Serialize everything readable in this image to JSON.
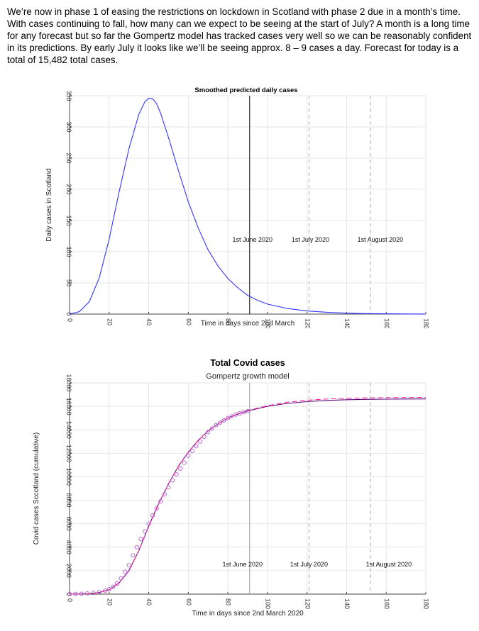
{
  "intro_text": "We’re now in phase 1 of easing the restrictions on lockdown in Scotland with phase 2 due in a month’s time. With cases continuing to fall, how many can we expect to be seeing at the start of July? A month is a long time for any forecast but so far the Gompertz model has tracked cases very well so we can be reasonably confident in its predictions. By early July it looks like we’ll be seeing approx. 8 – 9 cases a day.  Forecast for today is a total of 15,482 total cases.",
  "chart_data": [
    {
      "type": "line",
      "title": "Smoothed predicted daily cases",
      "subtitle": "",
      "xlabel": "Time in days since 2nd March",
      "ylabel": "Daily cases in Scotland",
      "xlim": [
        0,
        180
      ],
      "ylim": [
        0,
        350
      ],
      "xticks": [
        0,
        20,
        40,
        60,
        80,
        100,
        120,
        140,
        160,
        180
      ],
      "yticks": [
        0,
        50,
        100,
        150,
        200,
        250,
        300,
        350
      ],
      "grid": true,
      "series": [
        {
          "color": "#3333ff",
          "x": [
            0,
            5,
            10,
            15,
            20,
            25,
            30,
            35,
            38,
            40,
            42,
            44,
            46,
            50,
            55,
            60,
            65,
            70,
            75,
            80,
            85,
            90,
            95,
            100,
            110,
            120,
            130,
            140,
            150,
            160,
            170,
            180
          ],
          "y": [
            0,
            4,
            20,
            58,
            120,
            195,
            265,
            320,
            340,
            346,
            345,
            337,
            322,
            283,
            230,
            180,
            138,
            103,
            77,
            57,
            42,
            30,
            22,
            16,
            9,
            5,
            3,
            1.5,
            0.8,
            0.4,
            0.2,
            0.1
          ]
        }
      ],
      "markers": [
        {
          "x": 91,
          "label": "1st June 2020",
          "style": "solid"
        },
        {
          "x": 121,
          "label": "1st July 2020",
          "style": "dashed"
        },
        {
          "x": 152,
          "label": "1st August 2020",
          "style": "dashed"
        }
      ]
    },
    {
      "type": "line",
      "title": "Total Covid cases",
      "subtitle": "Gompertz growth model",
      "xlabel": "Time in days since 2nd March 2020",
      "ylabel": "Covid cases Sccotland (cumulative)",
      "xlim": [
        0,
        180
      ],
      "ylim": [
        0,
        18000
      ],
      "xticks": [
        0,
        20,
        40,
        60,
        80,
        100,
        120,
        140,
        160,
        180
      ],
      "yticks": [
        0,
        2000,
        4000,
        6000,
        8000,
        10000,
        12000,
        14000,
        16000,
        18000
      ],
      "grid": true,
      "series": [
        {
          "name": "",
          "color": "#5a0a7a",
          "style": "solid",
          "x": [
            0,
            10,
            15,
            20,
            25,
            30,
            35,
            40,
            45,
            50,
            55,
            60,
            65,
            70,
            75,
            80,
            85,
            90,
            95,
            100,
            110,
            120,
            130,
            140,
            150,
            160,
            170,
            180
          ],
          "y": [
            0,
            30,
            140,
            380,
            950,
            2000,
            3700,
            5800,
            7700,
            9400,
            10900,
            12100,
            13100,
            13900,
            14500,
            15000,
            15350,
            15600,
            15800,
            16000,
            16250,
            16400,
            16500,
            16560,
            16590,
            16610,
            16620,
            16630
          ]
        },
        {
          "name": "",
          "color": "#ff2299",
          "style": "dashed",
          "x": [
            0,
            10,
            15,
            20,
            25,
            30,
            35,
            40,
            45,
            50,
            55,
            60,
            65,
            70,
            75,
            80,
            85,
            90,
            95,
            100,
            110,
            120,
            130,
            140,
            150,
            160,
            170,
            180
          ],
          "y": [
            0,
            30,
            140,
            380,
            950,
            2000,
            3700,
            5800,
            7700,
            9400,
            10900,
            12100,
            13100,
            13900,
            14500,
            15000,
            15350,
            15650,
            15850,
            16050,
            16350,
            16520,
            16620,
            16680,
            16720,
            16740,
            16750,
            16760
          ]
        },
        {
          "name": "",
          "color": "#b060d0",
          "style": "markers",
          "x": [
            0,
            3,
            6,
            9,
            12,
            15,
            18,
            20,
            22,
            24,
            26,
            28,
            30,
            32,
            34,
            36,
            38,
            40,
            42,
            44,
            46,
            48,
            50,
            52,
            54,
            56,
            58,
            60,
            62,
            64,
            66,
            68,
            70,
            72,
            74,
            76,
            78,
            80,
            82,
            84,
            86,
            88,
            90
          ],
          "y": [
            0,
            10,
            30,
            60,
            110,
            180,
            290,
            420,
            620,
            900,
            1350,
            1900,
            2450,
            3300,
            4000,
            4700,
            5350,
            6000,
            6700,
            7300,
            7900,
            8500,
            9100,
            9700,
            10200,
            10700,
            11200,
            11800,
            12200,
            12600,
            13000,
            13400,
            13800,
            14100,
            14400,
            14600,
            14800,
            15000,
            15150,
            15300,
            15400,
            15500,
            15580
          ]
        }
      ],
      "markers": [
        {
          "x": 91,
          "label": "1st June 2020",
          "style": "solid"
        },
        {
          "x": 121,
          "label": "1st July 2020",
          "style": "dashed"
        },
        {
          "x": 152,
          "label": "1st August 2020",
          "style": "dashed"
        }
      ]
    }
  ]
}
